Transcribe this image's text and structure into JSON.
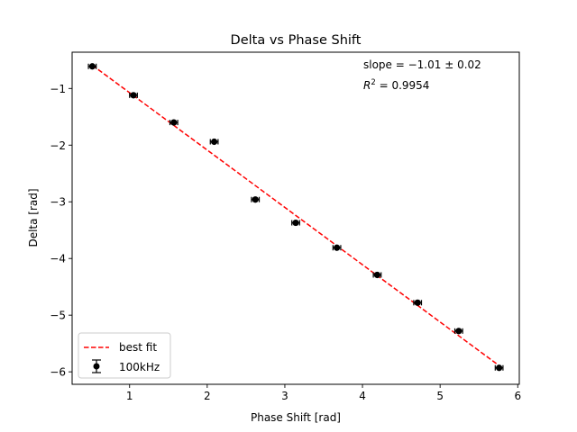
{
  "chart_data": {
    "type": "scatter",
    "title": "Delta vs Phase Shift",
    "xlabel": "Phase Shift [rad]",
    "ylabel": "Delta [rad]",
    "xlim": [
      0.26,
      6.02
    ],
    "ylim": [
      -6.22,
      -0.36
    ],
    "xticks": [
      1,
      2,
      3,
      4,
      5,
      6
    ],
    "yticks": [
      -1,
      -2,
      -3,
      -4,
      -5,
      -6
    ],
    "xtick_labels": [
      "1",
      "2",
      "3",
      "4",
      "5",
      "6"
    ],
    "ytick_labels": [
      "−1",
      "−2",
      "−3",
      "−4",
      "−5",
      "−6"
    ],
    "grid": false,
    "legend_position": "lower-left",
    "annotations": {
      "slope": "slope = −1.01 ± 0.02",
      "r2_prefix": "R",
      "r2_sup": "2",
      "r2_value": " = 0.9954"
    },
    "series": [
      {
        "name": "100kHz",
        "kind": "errorbar",
        "color": "#000000",
        "x": [
          0.52,
          1.05,
          1.57,
          2.09,
          2.62,
          3.14,
          3.67,
          4.19,
          4.71,
          5.24,
          5.76
        ],
        "y": [
          -0.61,
          -1.12,
          -1.6,
          -1.94,
          -2.96,
          -3.37,
          -3.81,
          -4.29,
          -4.78,
          -5.28,
          -5.93
        ],
        "xerr": 0.05
      },
      {
        "name": "best fit",
        "kind": "line",
        "style": "dashed",
        "color": "#ff0000",
        "x": [
          0.52,
          5.76
        ],
        "y": [
          -0.59,
          -5.89
        ]
      }
    ]
  }
}
